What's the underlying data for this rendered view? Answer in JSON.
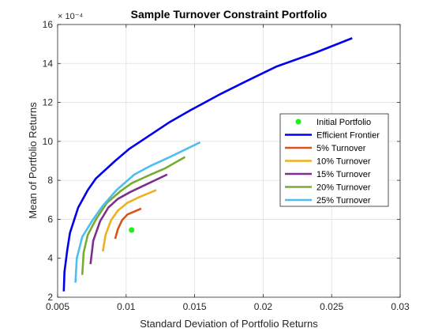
{
  "chart_data": {
    "type": "line",
    "title": "Sample Turnover Constraint Portfolio",
    "xlabel": "Standard Deviation of Portfolio Returns",
    "ylabel": "Mean of Portfolio Returns",
    "y_exponent_label": "× 10⁻⁴",
    "xlim": [
      0.005,
      0.03
    ],
    "ylim": [
      2,
      16
    ],
    "x_ticks": [
      0.005,
      0.01,
      0.015,
      0.02,
      0.025,
      0.03
    ],
    "x_tick_labels": [
      "0.005",
      "0.01",
      "0.015",
      "0.02",
      "0.025",
      "0.03"
    ],
    "y_ticks": [
      2,
      4,
      6,
      8,
      10,
      12,
      14,
      16
    ],
    "y_tick_labels": [
      "2",
      "4",
      "6",
      "8",
      "10",
      "12",
      "14",
      "16"
    ],
    "grid": true,
    "legend_position": "right",
    "series": [
      {
        "name": "Initial Portfolio",
        "kind": "marker",
        "color": "#22ee22",
        "points": [
          [
            0.0104,
            5.45
          ]
        ]
      },
      {
        "name": "Efficient Frontier",
        "kind": "line",
        "color": "#0000ee",
        "points": [
          [
            0.00545,
            2.3
          ],
          [
            0.0055,
            3.3
          ],
          [
            0.0057,
            4.4
          ],
          [
            0.0059,
            5.3
          ],
          [
            0.0065,
            6.6
          ],
          [
            0.0072,
            7.5
          ],
          [
            0.0078,
            8.1
          ],
          [
            0.0092,
            9.0
          ],
          [
            0.0102,
            9.6
          ],
          [
            0.0117,
            10.3
          ],
          [
            0.0132,
            11.0
          ],
          [
            0.0147,
            11.6
          ],
          [
            0.0168,
            12.4
          ],
          [
            0.0188,
            13.1
          ],
          [
            0.021,
            13.85
          ],
          [
            0.0238,
            14.55
          ],
          [
            0.0265,
            15.3
          ]
        ]
      },
      {
        "name": "5% Turnover",
        "kind": "line",
        "color": "#d95319",
        "points": [
          [
            0.0092,
            5.0
          ],
          [
            0.0094,
            5.5
          ],
          [
            0.0097,
            5.95
          ],
          [
            0.0101,
            6.25
          ],
          [
            0.0106,
            6.4
          ],
          [
            0.0111,
            6.55
          ]
        ]
      },
      {
        "name": "10% Turnover",
        "kind": "line",
        "color": "#edb120",
        "points": [
          [
            0.0083,
            4.35
          ],
          [
            0.0085,
            5.2
          ],
          [
            0.0089,
            5.95
          ],
          [
            0.0094,
            6.45
          ],
          [
            0.0101,
            6.85
          ],
          [
            0.011,
            7.15
          ],
          [
            0.0122,
            7.5
          ]
        ]
      },
      {
        "name": "15% Turnover",
        "kind": "line",
        "color": "#7e2f8e",
        "points": [
          [
            0.0074,
            3.7
          ],
          [
            0.0076,
            4.9
          ],
          [
            0.0081,
            5.9
          ],
          [
            0.0087,
            6.6
          ],
          [
            0.0094,
            7.05
          ],
          [
            0.0103,
            7.4
          ],
          [
            0.0115,
            7.8
          ],
          [
            0.013,
            8.3
          ]
        ]
      },
      {
        "name": "20% Turnover",
        "kind": "line",
        "color": "#77ac30",
        "points": [
          [
            0.0068,
            3.15
          ],
          [
            0.0069,
            4.3
          ],
          [
            0.0072,
            5.2
          ],
          [
            0.0078,
            6.0
          ],
          [
            0.0086,
            6.85
          ],
          [
            0.0096,
            7.45
          ],
          [
            0.0104,
            7.85
          ],
          [
            0.0118,
            8.3
          ],
          [
            0.0128,
            8.6
          ],
          [
            0.0143,
            9.2
          ]
        ]
      },
      {
        "name": "25% Turnover",
        "kind": "line",
        "color": "#4dbeee",
        "points": [
          [
            0.0063,
            2.75
          ],
          [
            0.0064,
            4.0
          ],
          [
            0.0068,
            5.1
          ],
          [
            0.0075,
            5.9
          ],
          [
            0.0083,
            6.7
          ],
          [
            0.0093,
            7.5
          ],
          [
            0.0106,
            8.3
          ],
          [
            0.0118,
            8.75
          ],
          [
            0.0132,
            9.2
          ],
          [
            0.0154,
            9.95
          ]
        ]
      }
    ]
  }
}
